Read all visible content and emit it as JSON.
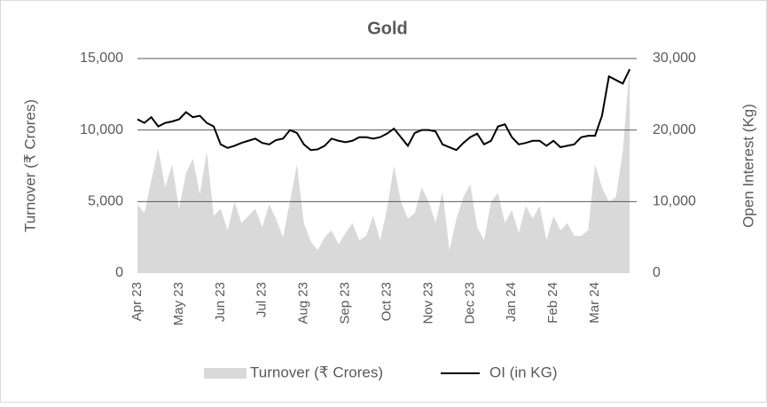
{
  "chart_data": {
    "type": "area-line",
    "title": "Gold",
    "ylabel": "Turnover (₹ Crores)",
    "y2label": "Open Interest (Kg)",
    "categories": [
      "Apr 23",
      null,
      null,
      null,
      null,
      null,
      "May 23",
      null,
      null,
      null,
      null,
      null,
      "Jun 23",
      null,
      null,
      null,
      null,
      null,
      "Jul 23",
      null,
      null,
      null,
      null,
      null,
      "Aug 23",
      null,
      null,
      null,
      null,
      null,
      "Sep 23",
      null,
      null,
      null,
      null,
      null,
      "Oct 23",
      null,
      null,
      null,
      null,
      null,
      "Nov 23",
      null,
      null,
      null,
      null,
      null,
      "Dec 23",
      null,
      null,
      null,
      null,
      null,
      "Jan 24",
      null,
      null,
      null,
      null,
      null,
      "Feb 24",
      null,
      null,
      null,
      null,
      null,
      "Mar 24",
      null,
      null,
      null,
      null,
      null
    ],
    "series": [
      {
        "name": "Turnover (₹ Crores)",
        "color": "#d9d9d9",
        "kind": "area",
        "values": [
          4800,
          4200,
          6500,
          8700,
          6000,
          7600,
          4500,
          7000,
          8000,
          5500,
          8500,
          4000,
          4500,
          3000,
          5000,
          3500,
          4000,
          4500,
          3200,
          4800,
          3800,
          2500,
          5000,
          7600,
          3500,
          2200,
          1600,
          2500,
          3000,
          2000,
          2800,
          3500,
          2300,
          2600,
          4000,
          2300,
          4500,
          7500,
          5000,
          3800,
          4200,
          6000,
          5000,
          3500,
          5700,
          1600,
          3800,
          5300,
          6200,
          3200,
          2300,
          5000,
          5600,
          3500,
          4400,
          2800,
          4700,
          3800,
          4700,
          2300,
          4000,
          3000,
          3500,
          2600,
          2600,
          3000,
          7600,
          6000,
          5000,
          5300,
          8500,
          14500
        ]
      },
      {
        "name": "OI (in KG)",
        "color": "#000000",
        "kind": "line",
        "axis": "y2",
        "values": [
          21500,
          21000,
          21800,
          20500,
          21000,
          21200,
          21500,
          22500,
          21800,
          22000,
          21000,
          20500,
          18000,
          17500,
          17800,
          18200,
          18500,
          18800,
          18200,
          18000,
          18600,
          18800,
          20000,
          19600,
          18000,
          17200,
          17300,
          17800,
          18800,
          18500,
          18300,
          18500,
          19000,
          19000,
          18800,
          19000,
          19500,
          20200,
          19000,
          17800,
          19600,
          20000,
          20000,
          19800,
          18000,
          17600,
          17200,
          18200,
          19000,
          19500,
          18000,
          18500,
          20500,
          20800,
          19000,
          18000,
          18200,
          18500,
          18500,
          17800,
          18500,
          17600,
          17800,
          18000,
          19000,
          19200,
          19200,
          22000,
          27500,
          27000,
          26500,
          28500
        ]
      }
    ],
    "ylim": [
      0,
      15000
    ],
    "yticks": [
      0,
      {
        "value": 5000,
        "label": "5,000"
      },
      {
        "value": 10000,
        "label": "10,000"
      },
      {
        "value": 15000,
        "label": "15,000"
      }
    ],
    "y2lim": [
      0,
      30000
    ],
    "y2ticks": [
      0,
      {
        "value": 10000,
        "label": "10,000"
      },
      {
        "value": 20000,
        "label": "20,000"
      },
      {
        "value": 30000,
        "label": "30,000"
      }
    ],
    "grid": true,
    "legend": "bottom"
  }
}
